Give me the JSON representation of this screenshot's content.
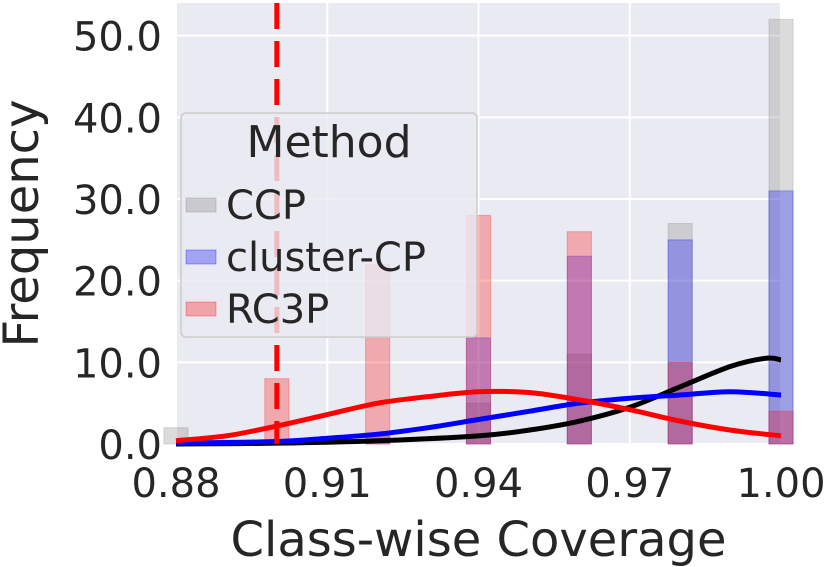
{
  "chart_data": {
    "type": "bar",
    "title": "",
    "xlabel": "Class-wise Coverage",
    "ylabel": "Frequency",
    "xlim": [
      0.88,
      1.0
    ],
    "ylim": [
      0,
      54
    ],
    "x_ticks": [
      "0.88",
      "0.91",
      "0.94",
      "0.97",
      "1.00"
    ],
    "x_tick_values": [
      0.88,
      0.91,
      0.94,
      0.97,
      1.0
    ],
    "y_ticks": [
      "0.0",
      "10.0",
      "20.0",
      "30.0",
      "40.0",
      "50.0"
    ],
    "y_tick_values": [
      0,
      10,
      20,
      30,
      40,
      50
    ],
    "grid": true,
    "threshold_line": {
      "x": 0.9,
      "color": "#ff0000",
      "style": "dashed"
    },
    "bin_width": 0.0048,
    "legend": {
      "title": "Method",
      "placement": "center-left"
    },
    "series": [
      {
        "name": "CCP",
        "color": "#7f7f7f",
        "bins": [
          {
            "x": 0.88,
            "y": 2
          },
          {
            "x": 0.94,
            "y": 5
          },
          {
            "x": 0.96,
            "y": 11
          },
          {
            "x": 0.98,
            "y": 27
          },
          {
            "x": 1.0,
            "y": 52
          }
        ],
        "kde": [
          [
            0.88,
            0.0
          ],
          [
            0.9,
            0.1
          ],
          [
            0.92,
            0.4
          ],
          [
            0.94,
            1.0
          ],
          [
            0.95,
            1.7
          ],
          [
            0.96,
            2.8
          ],
          [
            0.97,
            4.5
          ],
          [
            0.98,
            7.0
          ],
          [
            0.99,
            9.5
          ],
          [
            0.997,
            10.5
          ],
          [
            1.0,
            10.3
          ]
        ]
      },
      {
        "name": "cluster-CP",
        "color": "#0000ff",
        "bins": [
          {
            "x": 0.92,
            "y": 1
          },
          {
            "x": 0.94,
            "y": 13
          },
          {
            "x": 0.96,
            "y": 23
          },
          {
            "x": 0.98,
            "y": 25
          },
          {
            "x": 1.0,
            "y": 31
          }
        ],
        "kde": [
          [
            0.88,
            0.1
          ],
          [
            0.9,
            0.3
          ],
          [
            0.91,
            0.7
          ],
          [
            0.92,
            1.2
          ],
          [
            0.93,
            2.0
          ],
          [
            0.94,
            3.0
          ],
          [
            0.95,
            4.0
          ],
          [
            0.96,
            5.0
          ],
          [
            0.97,
            5.6
          ],
          [
            0.98,
            6.0
          ],
          [
            0.99,
            6.4
          ],
          [
            1.0,
            6.0
          ]
        ]
      },
      {
        "name": "RC3P",
        "color": "#ff0000",
        "bins": [
          {
            "x": 0.9,
            "y": 8
          },
          {
            "x": 0.92,
            "y": 22
          },
          {
            "x": 0.94,
            "y": 28
          },
          {
            "x": 0.96,
            "y": 26
          },
          {
            "x": 0.98,
            "y": 10
          },
          {
            "x": 1.0,
            "y": 4
          }
        ],
        "kde": [
          [
            0.88,
            0.4
          ],
          [
            0.89,
            1.0
          ],
          [
            0.9,
            2.2
          ],
          [
            0.91,
            3.6
          ],
          [
            0.92,
            5.0
          ],
          [
            0.93,
            5.8
          ],
          [
            0.94,
            6.4
          ],
          [
            0.95,
            6.3
          ],
          [
            0.96,
            5.4
          ],
          [
            0.97,
            4.2
          ],
          [
            0.98,
            2.8
          ],
          [
            0.99,
            1.7
          ],
          [
            1.0,
            1.0
          ]
        ]
      }
    ]
  }
}
